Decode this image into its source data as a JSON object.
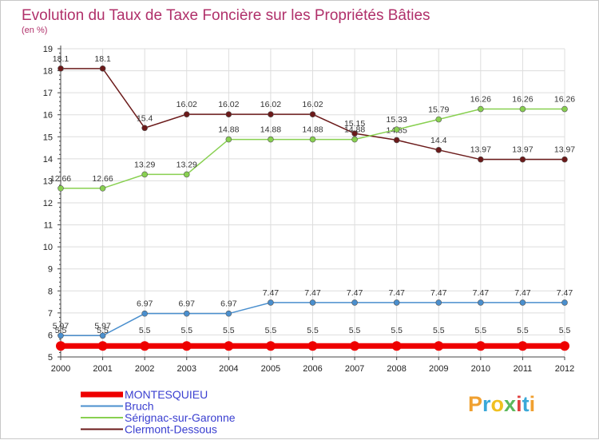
{
  "chart_data": {
    "type": "line",
    "title": "Evolution du Taux de Taxe Foncière sur les Propriétés Bâties",
    "subtitle": "(en %)",
    "xlabel": "",
    "ylabel": "(en %)",
    "ylim": [
      5,
      19
    ],
    "grid": true,
    "categories": [
      "2000",
      "2001",
      "2002",
      "2003",
      "2004",
      "2005",
      "2006",
      "2007",
      "2008",
      "2009",
      "2010",
      "2011",
      "2012"
    ],
    "yticks": [
      "5",
      "6",
      "7",
      "8",
      "9",
      "10",
      "11",
      "12",
      "13",
      "14",
      "15",
      "16",
      "17",
      "18",
      "19"
    ],
    "series": [
      {
        "name": "MONTESQUIEU",
        "color": "#ee0000",
        "values": [
          5.5,
          5.5,
          5.5,
          5.5,
          5.5,
          5.5,
          5.5,
          5.5,
          5.5,
          5.5,
          5.5,
          5.5,
          5.5
        ],
        "labels": [
          "5.5",
          "5.5",
          "5.5",
          "5.5",
          "5.5",
          "5.5",
          "5.5",
          "5.5",
          "5.5",
          "5.5",
          "5.5",
          "5.5",
          "5.5"
        ]
      },
      {
        "name": "Bruch",
        "color": "#4a8fce",
        "values": [
          5.97,
          5.97,
          6.97,
          6.97,
          6.97,
          7.47,
          7.47,
          7.47,
          7.47,
          7.47,
          7.47,
          7.47,
          7.47
        ],
        "labels": [
          "5.97",
          "5.97",
          "6.97",
          "6.97",
          "6.97",
          "7.47",
          "7.47",
          "7.47",
          "7.47",
          "7.47",
          "7.47",
          "7.47",
          "7.47"
        ]
      },
      {
        "name": "Sérignac-sur-Garonne",
        "color": "#88d050",
        "values": [
          12.66,
          12.66,
          13.29,
          13.29,
          14.88,
          14.88,
          14.88,
          14.88,
          15.33,
          15.79,
          16.26,
          16.26,
          16.26
        ],
        "labels": [
          "12.66",
          "12.66",
          "13.29",
          "13.29",
          "14.88",
          "14.88",
          "14.88",
          "14.88",
          "15.33",
          "15.79",
          "16.26",
          "16.26",
          "16.26"
        ]
      },
      {
        "name": "Clermont-Dessous",
        "color": "#6b1a1a",
        "values": [
          18.1,
          18.1,
          15.4,
          16.02,
          16.02,
          16.02,
          16.02,
          15.15,
          14.85,
          14.4,
          13.97,
          13.97,
          13.97
        ],
        "labels": [
          "18.1",
          "18.1",
          "15.4",
          "16.02",
          "16.02",
          "16.02",
          "16.02",
          "15.15",
          "14.85",
          "14.4",
          "13.97",
          "13.97",
          "13.97"
        ]
      }
    ]
  },
  "logo": {
    "letters": [
      "P",
      "r",
      "o",
      "x",
      "i",
      "t",
      "i"
    ],
    "colors": [
      "#f0a030",
      "#3aa8d8",
      "#f0c020",
      "#5cb85c",
      "#e04040",
      "#3aa8d8",
      "#f0a030"
    ]
  }
}
